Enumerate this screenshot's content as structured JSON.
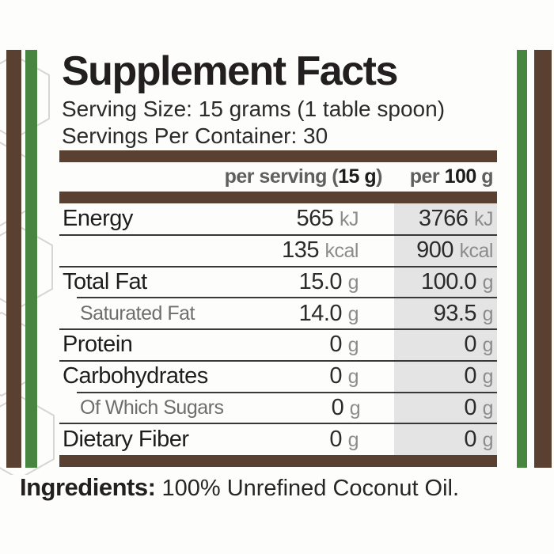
{
  "header": {
    "title": "Supplement Facts",
    "serving_size": "Serving Size: 15 grams (1 table spoon)",
    "servings_per_container": "Servings Per Container: 30"
  },
  "table": {
    "columns": {
      "serving_prefix": "per serving (",
      "serving_bold": "15 g",
      "serving_suffix": ")",
      "per100_prefix": "per ",
      "per100_bold": "100",
      "per100_suffix": " g"
    },
    "rows": [
      {
        "name": "Energy",
        "sub": false,
        "serving_value": "565",
        "serving_unit": "kJ",
        "per100_value": "3766",
        "per100_unit": "kJ",
        "divider": "full"
      },
      {
        "name": "",
        "sub": false,
        "serving_value": "135",
        "serving_unit": "kcal",
        "per100_value": "900",
        "per100_unit": "kcal",
        "divider": "full"
      },
      {
        "name": "Total Fat",
        "sub": false,
        "serving_value": "15.0",
        "serving_unit": "g",
        "per100_value": "100.0",
        "per100_unit": "g",
        "divider": "indent"
      },
      {
        "name": "Saturated Fat",
        "sub": true,
        "serving_value": "14.0",
        "serving_unit": "g",
        "per100_value": "93.5",
        "per100_unit": "g",
        "divider": "full"
      },
      {
        "name": "Protein",
        "sub": false,
        "serving_value": "0",
        "serving_unit": "g",
        "per100_value": "0",
        "per100_unit": "g",
        "divider": "full"
      },
      {
        "name": "Carbohydrates",
        "sub": false,
        "serving_value": "0",
        "serving_unit": "g",
        "per100_value": "0",
        "per100_unit": "g",
        "divider": "indent"
      },
      {
        "name": "Of Which Sugars",
        "sub": true,
        "serving_value": "0",
        "serving_unit": "g",
        "per100_value": "0",
        "per100_unit": "g",
        "divider": "full"
      },
      {
        "name": "Dietary Fiber",
        "sub": false,
        "serving_value": "0",
        "serving_unit": "g",
        "per100_value": "0",
        "per100_unit": "g",
        "divider": "none"
      }
    ]
  },
  "ingredients": {
    "label": "Ingredients:",
    "text": " 100% Unrefined Coconut Oil."
  },
  "colors": {
    "brand_brown": "#5a4031",
    "brand_green": "#478540",
    "per100_column_bg": "#e4e4e4",
    "muted_text": "#8c8c8c",
    "text": "#231f20"
  }
}
